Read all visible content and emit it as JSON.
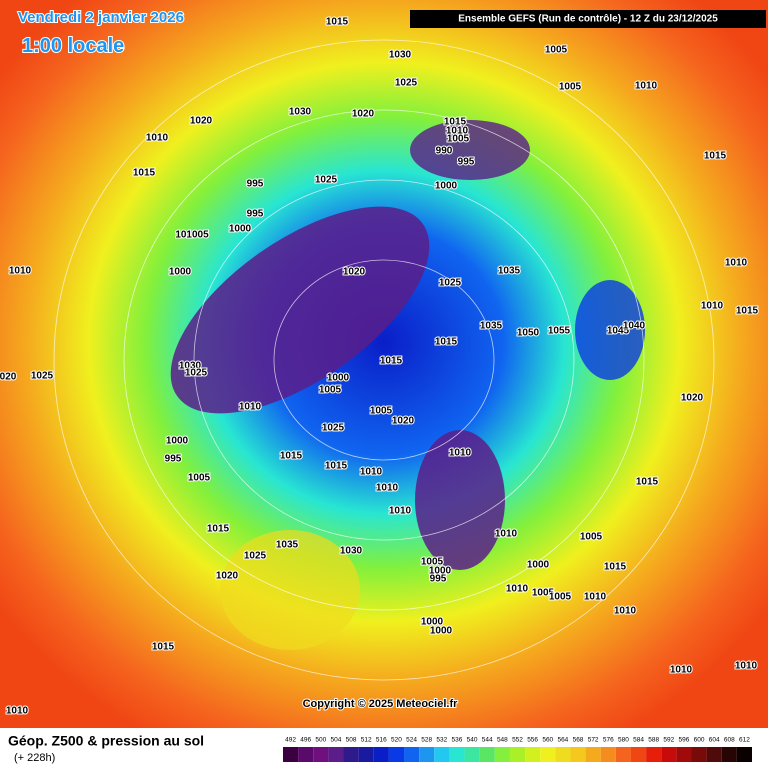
{
  "header": {
    "date": "Vendredi 2 janvier 2026",
    "time": "1:00 locale",
    "model": "Ensemble GEFS  (Run de contrôle)  -  12 Z du 23/12/2025"
  },
  "map": {
    "copyright": "Copyright © 2025 Meteociel.fr",
    "pressure_labels": [
      "1015",
      "1030",
      "1005",
      "1025",
      "1005",
      "1010",
      "1020",
      "1030",
      "1020",
      "1015",
      "1010",
      "1005",
      "990",
      "995",
      "1000",
      "1010",
      "1015",
      "995",
      "1025",
      "995",
      "1000",
      "1015",
      "101005",
      "1010",
      "1000",
      "1020",
      "1035",
      "1025",
      "1010",
      "1010",
      "1015",
      "1035",
      "1050",
      "1055",
      "1045",
      "1040",
      "1015",
      "1030",
      "1025",
      "1015",
      "1000",
      "1005",
      "020",
      "1025",
      "1010",
      "1005",
      "1020",
      "1025",
      "1020",
      "1000",
      "995",
      "1010",
      "1015",
      "1015",
      "1010",
      "1010",
      "1005",
      "1015",
      "1010",
      "1010",
      "1005",
      "1015",
      "1035",
      "1030",
      "1025",
      "1000",
      "1005",
      "1000",
      "995",
      "1015",
      "1020",
      "1010",
      "1005",
      "1005",
      "1010",
      "1010",
      "1000",
      "1000",
      "1015",
      "1010",
      "1010",
      "1010"
    ]
  },
  "legend": {
    "title": "Géop. Z500 & pression au sol",
    "subtitle": "(+ 228h)",
    "scale": [
      "492",
      "496",
      "500",
      "504",
      "508",
      "512",
      "516",
      "520",
      "524",
      "528",
      "532",
      "536",
      "540",
      "544",
      "548",
      "552",
      "556",
      "560",
      "564",
      "568",
      "572",
      "576",
      "580",
      "584",
      "588",
      "592",
      "596",
      "600",
      "604",
      "608",
      "612"
    ],
    "colors": [
      "#3a0040",
      "#5a0a6a",
      "#70107e",
      "#5a1d8a",
      "#2e1a8a",
      "#1a1aa0",
      "#0a1ec8",
      "#0a3ae6",
      "#1064f0",
      "#1e96f0",
      "#22c8f0",
      "#28e6d2",
      "#3ce6a0",
      "#5ae664",
      "#82f03c",
      "#aaf028",
      "#d2f01e",
      "#f0f01e",
      "#f0dc1e",
      "#f5c81e",
      "#f5aa1e",
      "#f58c1e",
      "#f5641e",
      "#f04614",
      "#e61e0a",
      "#c80a0a",
      "#a00a0a",
      "#780a0a",
      "#500a0a",
      "#280505",
      "#0a0000"
    ]
  }
}
